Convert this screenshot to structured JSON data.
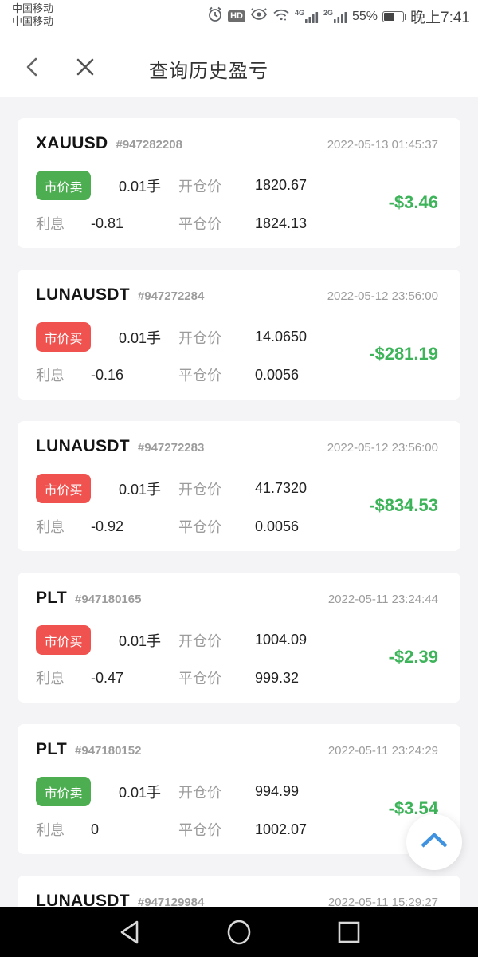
{
  "status_bar": {
    "carrier_line1": "中国移动",
    "carrier_line2": "中国移动",
    "hd_label": "HD",
    "network_4g": "4G",
    "network_2g": "2G",
    "battery_percent": "55%",
    "battery_level": 55,
    "time": "晚上7:41"
  },
  "header": {
    "title": "查询历史盈亏"
  },
  "labels": {
    "open_price": "开仓价",
    "close_price": "平仓价",
    "interest": "利息"
  },
  "colors": {
    "buy_red": "#f0534f",
    "sell_green": "#4cae50",
    "pnl_green": "#3eb45a",
    "fab_blue": "#3e92e0"
  },
  "orders": [
    {
      "symbol": "XAUUSD",
      "order_no": "#947282208",
      "datetime": "2022-05-13 01:45:37",
      "side": "sell",
      "side_label": "市价卖",
      "lots": "0.01手",
      "open_price": "1820.67",
      "close_price": "1824.13",
      "interest": "-0.81",
      "pnl": "-$3.46"
    },
    {
      "symbol": "LUNAUSDT",
      "order_no": "#947272284",
      "datetime": "2022-05-12 23:56:00",
      "side": "buy",
      "side_label": "市价买",
      "lots": "0.01手",
      "open_price": "14.0650",
      "close_price": "0.0056",
      "interest": "-0.16",
      "pnl": "-$281.19"
    },
    {
      "symbol": "LUNAUSDT",
      "order_no": "#947272283",
      "datetime": "2022-05-12 23:56:00",
      "side": "buy",
      "side_label": "市价买",
      "lots": "0.01手",
      "open_price": "41.7320",
      "close_price": "0.0056",
      "interest": "-0.92",
      "pnl": "-$834.53"
    },
    {
      "symbol": "PLT",
      "order_no": "#947180165",
      "datetime": "2022-05-11 23:24:44",
      "side": "buy",
      "side_label": "市价买",
      "lots": "0.01手",
      "open_price": "1004.09",
      "close_price": "999.32",
      "interest": "-0.47",
      "pnl": "-$2.39"
    },
    {
      "symbol": "PLT",
      "order_no": "#947180152",
      "datetime": "2022-05-11 23:24:29",
      "side": "sell",
      "side_label": "市价卖",
      "lots": "0.01手",
      "open_price": "994.99",
      "close_price": "1002.07",
      "interest": "0",
      "pnl": "-$3.54"
    },
    {
      "symbol": "LUNAUSDT",
      "order_no": "#947129984",
      "datetime": "2022-05-11 15:29:27"
    }
  ]
}
